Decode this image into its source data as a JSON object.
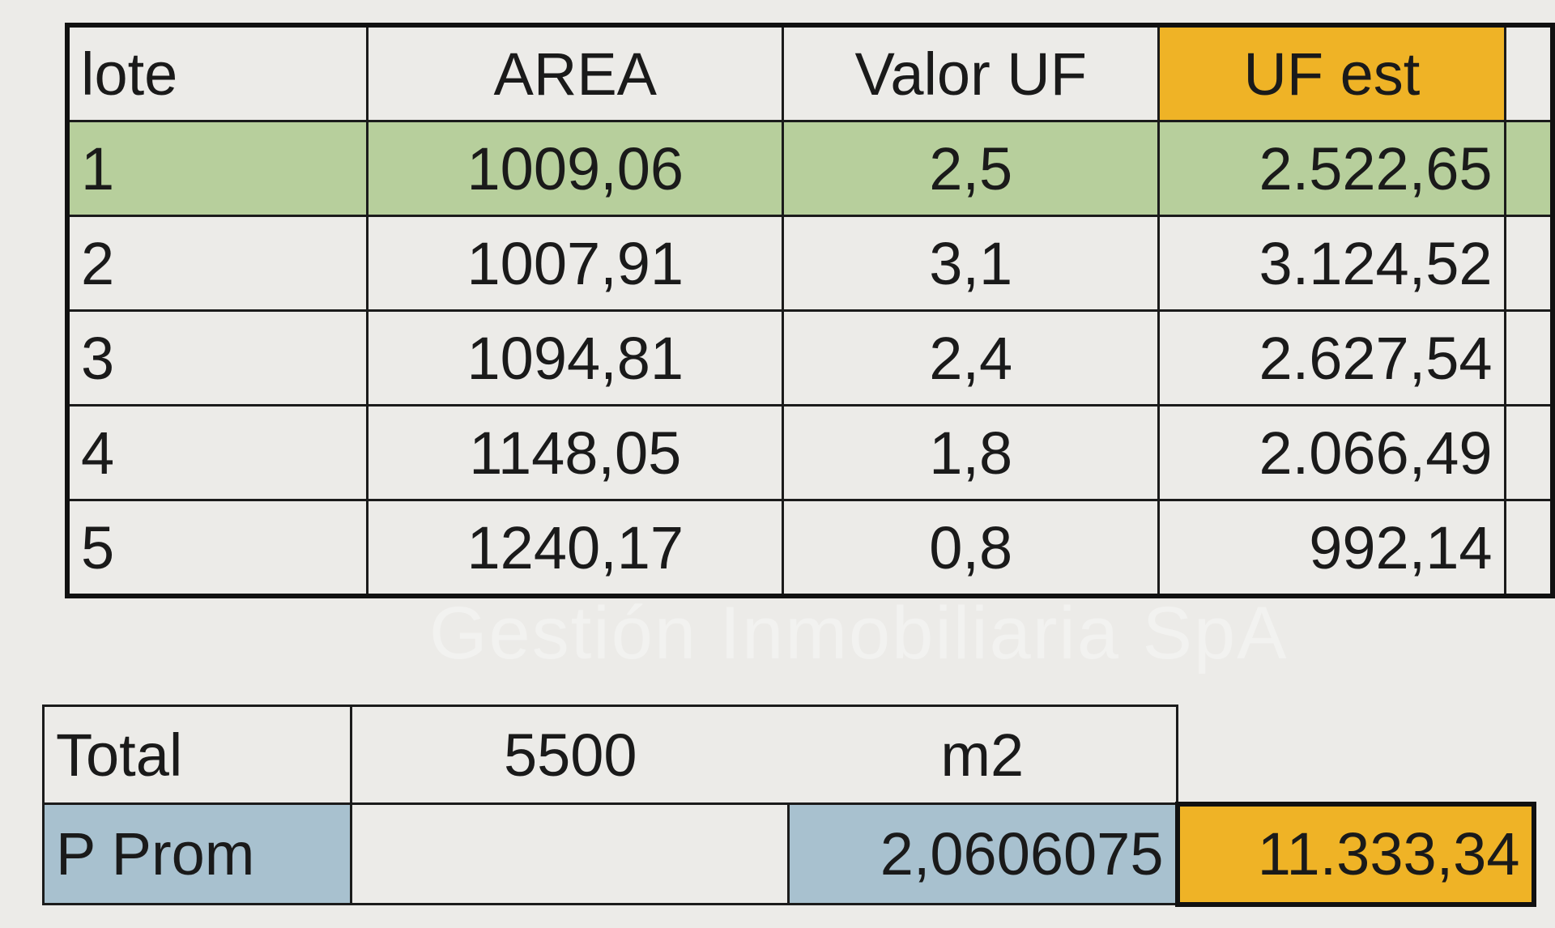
{
  "lots_table": {
    "headers": [
      "lote",
      "AREA",
      "Valor UF",
      "UF est"
    ],
    "rows": [
      {
        "lote": "1",
        "area": "1009,06",
        "valor_uf": "2,5",
        "uf_est": "2.522,65"
      },
      {
        "lote": "2",
        "area": "1007,91",
        "valor_uf": "3,1",
        "uf_est": "3.124,52"
      },
      {
        "lote": "3",
        "area": "1094,81",
        "valor_uf": "2,4",
        "uf_est": "2.627,54"
      },
      {
        "lote": "4",
        "area": "1148,05",
        "valor_uf": "1,8",
        "uf_est": "2.066,49"
      },
      {
        "lote": "5",
        "area": "1240,17",
        "valor_uf": "0,8",
        "uf_est": "992,14"
      }
    ]
  },
  "summary_table": {
    "total_label": "Total",
    "total_value": "5500",
    "total_unit": "m2",
    "prom_label": "P Prom",
    "prom_value": "2,0606075",
    "prom_total": "11.333,34"
  },
  "watermark": "Gestión Inmobiliaria SpA",
  "colors": {
    "highlight_row": "#b7cf9c",
    "uf_highlight": "#efb326",
    "prom_highlight": "#a8c1cf"
  }
}
